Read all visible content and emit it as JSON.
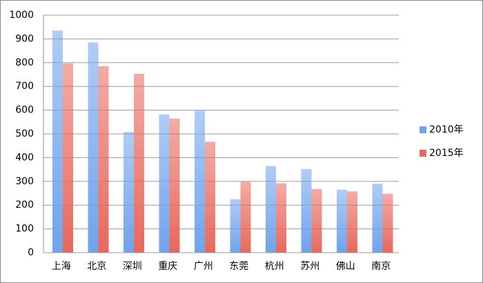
{
  "chart_data": {
    "type": "bar",
    "categories": [
      "上海",
      "北京",
      "深圳",
      "重庆",
      "广州",
      "东莞",
      "杭州",
      "苏州",
      "佛山",
      "南京"
    ],
    "series": [
      {
        "name": "2010年",
        "color": "#6fa3ec",
        "values": [
          935,
          885,
          508,
          582,
          598,
          225,
          365,
          352,
          265,
          290
        ]
      },
      {
        "name": "2015年",
        "color": "#e8685c",
        "values": [
          797,
          785,
          753,
          565,
          467,
          298,
          292,
          268,
          258,
          248
        ]
      }
    ],
    "ylim": [
      0,
      1000
    ],
    "yticks": [
      0,
      100,
      200,
      300,
      400,
      500,
      600,
      700,
      800,
      900,
      1000
    ],
    "grid": true,
    "legend": "right"
  }
}
